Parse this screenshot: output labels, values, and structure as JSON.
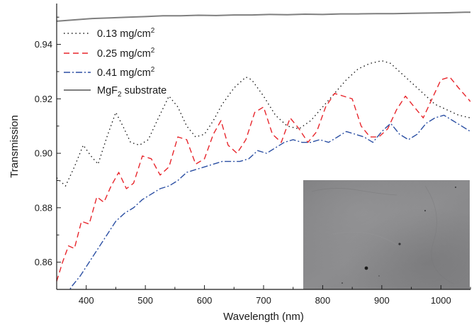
{
  "chart_data": {
    "type": "line",
    "xlabel": "Wavelength (nm)",
    "ylabel": "Transmission",
    "xlim": [
      350,
      1050
    ],
    "ylim": [
      0.85,
      0.955
    ],
    "xticks": [
      400,
      500,
      600,
      700,
      800,
      900,
      1000
    ],
    "yticks": [
      0.86,
      0.88,
      0.9,
      0.92,
      0.94
    ],
    "grid": false,
    "legend_position": "top-left",
    "series": [
      {
        "legend_parts": [
          "0.13 mg/cm",
          "2",
          ""
        ],
        "color": "#1a1a1a",
        "dash": "1.5,4",
        "x": [
          350,
          365,
          380,
          395,
          408,
          420,
          435,
          450,
          462,
          475,
          490,
          505,
          520,
          540,
          555,
          570,
          585,
          600,
          615,
          630,
          650,
          670,
          680,
          700,
          720,
          740,
          760,
          780,
          800,
          820,
          840,
          860,
          880,
          900,
          915,
          930,
          950,
          970,
          990,
          1010,
          1030,
          1050
        ],
        "y": [
          0.891,
          0.888,
          0.895,
          0.903,
          0.899,
          0.896,
          0.906,
          0.915,
          0.91,
          0.904,
          0.903,
          0.905,
          0.912,
          0.921,
          0.917,
          0.91,
          0.906,
          0.907,
          0.912,
          0.918,
          0.924,
          0.928,
          0.927,
          0.921,
          0.914,
          0.91,
          0.909,
          0.912,
          0.917,
          0.922,
          0.927,
          0.931,
          0.933,
          0.934,
          0.933,
          0.93,
          0.926,
          0.922,
          0.918,
          0.916,
          0.914,
          0.913
        ]
      },
      {
        "legend_parts": [
          "0.25 mg/cm",
          "2",
          ""
        ],
        "color": "#e8262c",
        "dash": "8,5",
        "x": [
          350,
          360,
          370,
          380,
          392,
          405,
          418,
          430,
          442,
          455,
          468,
          480,
          495,
          510,
          525,
          540,
          555,
          570,
          585,
          600,
          615,
          628,
          640,
          655,
          670,
          685,
          700,
          715,
          730,
          745,
          760,
          775,
          790,
          805,
          820,
          835,
          850,
          865,
          880,
          895,
          910,
          925,
          940,
          955,
          970,
          985,
          1000,
          1015,
          1030,
          1050
        ],
        "y": [
          0.853,
          0.86,
          0.866,
          0.865,
          0.875,
          0.874,
          0.884,
          0.882,
          0.888,
          0.893,
          0.887,
          0.889,
          0.899,
          0.898,
          0.892,
          0.895,
          0.906,
          0.905,
          0.896,
          0.898,
          0.907,
          0.912,
          0.903,
          0.9,
          0.905,
          0.915,
          0.917,
          0.907,
          0.904,
          0.913,
          0.909,
          0.904,
          0.908,
          0.917,
          0.922,
          0.921,
          0.92,
          0.91,
          0.906,
          0.906,
          0.909,
          0.916,
          0.921,
          0.917,
          0.913,
          0.92,
          0.927,
          0.928,
          0.924,
          0.919
        ]
      },
      {
        "legend_parts": [
          "0.41 mg/cm",
          "2",
          ""
        ],
        "color": "#2b4fa3",
        "dash": "9,3,2,3",
        "x": [
          350,
          362,
          375,
          390,
          405,
          420,
          435,
          450,
          465,
          480,
          495,
          510,
          525,
          540,
          555,
          570,
          585,
          600,
          615,
          630,
          645,
          660,
          675,
          690,
          705,
          720,
          735,
          750,
          765,
          780,
          795,
          810,
          825,
          840,
          855,
          870,
          885,
          900,
          915,
          930,
          945,
          960,
          975,
          990,
          1005,
          1020,
          1035,
          1050
        ],
        "y": [
          0.845,
          0.846,
          0.851,
          0.855,
          0.86,
          0.865,
          0.87,
          0.875,
          0.878,
          0.88,
          0.883,
          0.885,
          0.887,
          0.888,
          0.89,
          0.893,
          0.894,
          0.895,
          0.896,
          0.897,
          0.897,
          0.897,
          0.898,
          0.901,
          0.9,
          0.902,
          0.904,
          0.905,
          0.904,
          0.904,
          0.905,
          0.904,
          0.906,
          0.908,
          0.907,
          0.906,
          0.904,
          0.908,
          0.911,
          0.907,
          0.905,
          0.907,
          0.911,
          0.913,
          0.914,
          0.912,
          0.91,
          0.908
        ]
      },
      {
        "legend_parts": [
          "MgF",
          "2",
          " substrate"
        ],
        "color": "#7f7f7f",
        "dash": "",
        "x": [
          350,
          380,
          410,
          440,
          470,
          500,
          530,
          560,
          590,
          620,
          650,
          680,
          710,
          740,
          770,
          800,
          830,
          860,
          890,
          920,
          950,
          980,
          1010,
          1040,
          1050
        ],
        "y": [
          0.9485,
          0.949,
          0.9495,
          0.9497,
          0.95,
          0.9502,
          0.9505,
          0.9505,
          0.9507,
          0.9506,
          0.9508,
          0.9508,
          0.951,
          0.9509,
          0.9511,
          0.951,
          0.9512,
          0.9512,
          0.9513,
          0.9513,
          0.9514,
          0.9515,
          0.9516,
          0.9518,
          0.9518
        ]
      }
    ]
  }
}
